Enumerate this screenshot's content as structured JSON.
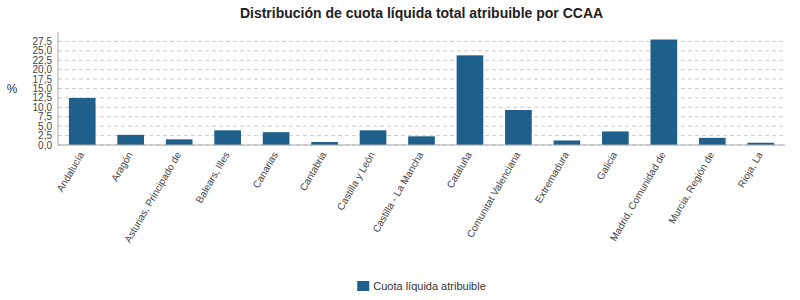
{
  "chart_data": {
    "type": "bar",
    "title": "Distribución de cuota líquida total atribuible por CCAA",
    "ylabel": "%",
    "categories": [
      "Andalucía",
      "Aragón",
      "Asturias, Principado de",
      "Balears, Illes",
      "Canarias",
      "Cantabria",
      "Castilla y León",
      "Castilla - La Mancha",
      "Cataluña",
      "Comunitat Valenciana",
      "Extremadura",
      "Galicia",
      "Madrid, Comunidad de",
      "Murcia, Región de",
      "Rioja, La"
    ],
    "series": [
      {
        "name": "Cuota líquida atribuible",
        "color": "#1f5f8b",
        "values": [
          12.5,
          2.7,
          1.5,
          3.9,
          3.4,
          0.8,
          3.9,
          2.3,
          23.8,
          9.3,
          1.2,
          3.6,
          28.0,
          1.9,
          0.6
        ]
      }
    ],
    "ylim": [
      0,
      30
    ],
    "yticks": [
      {
        "value": 0.0,
        "label": "0,0"
      },
      {
        "value": 2.5,
        "label": "2,5"
      },
      {
        "value": 5.0,
        "label": "5,0"
      },
      {
        "value": 7.5,
        "label": "7,5"
      },
      {
        "value": 10.0,
        "label": "10,0"
      },
      {
        "value": 12.5,
        "label": "12,5"
      },
      {
        "value": 15.0,
        "label": "15,0"
      },
      {
        "value": 17.5,
        "label": "17,5"
      },
      {
        "value": 20.0,
        "label": "20,0"
      },
      {
        "value": 22.5,
        "label": "22,5"
      },
      {
        "value": 25.0,
        "label": "25,0"
      },
      {
        "value": 27.5,
        "label": "27,5"
      }
    ],
    "grid": true,
    "legend": "bottom"
  }
}
